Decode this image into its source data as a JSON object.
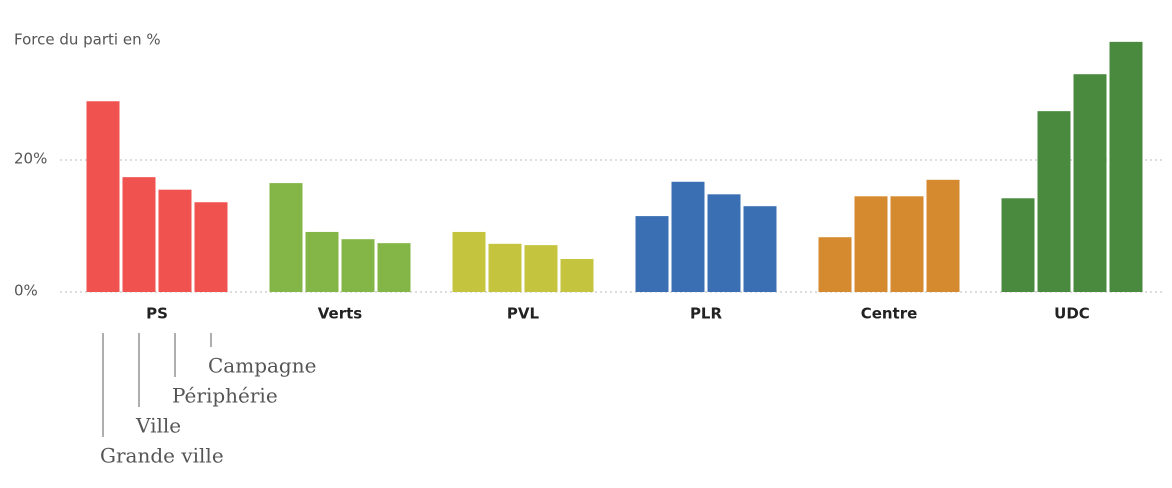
{
  "chart_data": {
    "type": "bar",
    "y_label": "Force du parti en %",
    "categories": [
      "PS",
      "Verts",
      "PVL",
      "PLR",
      "Centre",
      "UDC"
    ],
    "colors": [
      "#f0524f",
      "#84b547",
      "#c5c43f",
      "#3a6fb4",
      "#d68a2f",
      "#4a8a3e"
    ],
    "series": [
      {
        "name": "Grande ville",
        "values": [
          28.9,
          16.5,
          9.1,
          11.5,
          8.3,
          14.2
        ]
      },
      {
        "name": "Ville",
        "values": [
          17.4,
          9.1,
          7.3,
          16.7,
          14.5,
          27.4
        ]
      },
      {
        "name": "Périphérie",
        "values": [
          15.5,
          8.0,
          7.1,
          14.8,
          14.5,
          33.0
        ]
      },
      {
        "name": "Campagne",
        "values": [
          13.6,
          7.4,
          5.0,
          13.0,
          17.0,
          37.9
        ]
      }
    ],
    "ylim": [
      0,
      40
    ],
    "yticks": [
      {
        "value": 0,
        "label": "0%"
      },
      {
        "value": 20,
        "label": "20%"
      }
    ],
    "grid": true
  }
}
